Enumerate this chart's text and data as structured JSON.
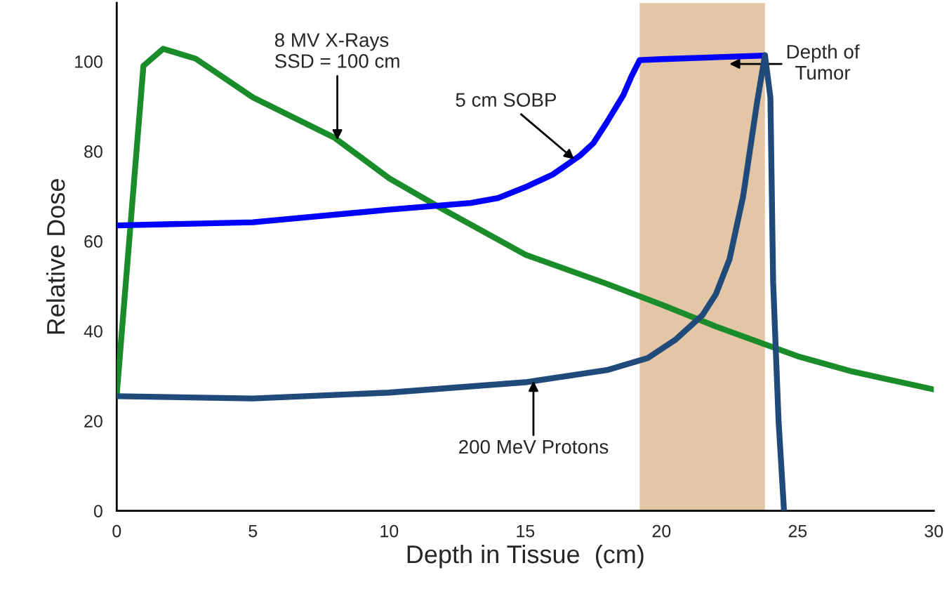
{
  "chart_data": {
    "type": "line",
    "xlabel": "Depth in Tissue  (cm)",
    "ylabel": "Relative Dose",
    "xlim": [
      0,
      30
    ],
    "ylim": [
      0,
      113
    ],
    "xticks": [
      0,
      5,
      10,
      15,
      20,
      25,
      30
    ],
    "yticks": [
      0,
      20,
      40,
      60,
      80,
      100
    ],
    "grid": false,
    "legend": false,
    "marker": "none",
    "line_style": "solid",
    "series": [
      {
        "color": "#1a8c2a",
        "x": [
          0,
          0.98,
          1.7,
          2.9,
          5,
          8,
          10,
          12,
          15,
          18,
          20,
          22,
          25,
          27,
          30
        ],
        "values": [
          25.8,
          99,
          102.8,
          100.6,
          92,
          83,
          74,
          67,
          57,
          50.5,
          45.9,
          41,
          34.4,
          31,
          27
        ]
      },
      {
        "color": "#0000ff",
        "x": [
          0,
          5,
          10,
          13,
          14,
          15,
          16,
          17,
          17.5,
          18,
          18.6,
          18.9,
          19.2,
          20,
          23.8
        ],
        "values": [
          63.5,
          64.2,
          67,
          68.5,
          69.6,
          72,
          74.8,
          79,
          81.8,
          86.5,
          92.5,
          96.7,
          100.3,
          100.5,
          101.3
        ]
      },
      {
        "color": "#1f4a7a",
        "x": [
          0,
          5,
          10,
          15,
          18,
          19.5,
          20.5,
          21.5,
          22,
          22.5,
          23,
          23.5,
          23.8,
          24,
          24.1,
          24.3,
          24.5
        ],
        "values": [
          25.5,
          25,
          26.3,
          28.6,
          31.3,
          34,
          38,
          43.5,
          48.2,
          56,
          70,
          90.5,
          101.4,
          92,
          51,
          20,
          0
        ]
      }
    ],
    "bands": [
      {
        "axis": "x",
        "from": 19.2,
        "to": 23.8,
        "label": "Depth of\nTumor",
        "color": "#e3c6a6"
      }
    ],
    "annotations": [
      {
        "text": "8 MV X-Rays\nSSD = 100 cm",
        "x": 8.1,
        "y": 82.5
      },
      {
        "text": "5 cm SOBP",
        "x": 16.8,
        "y": 78.2
      },
      {
        "text": "200 MeV Protons",
        "x": 15.3,
        "y": 28.9
      }
    ]
  }
}
